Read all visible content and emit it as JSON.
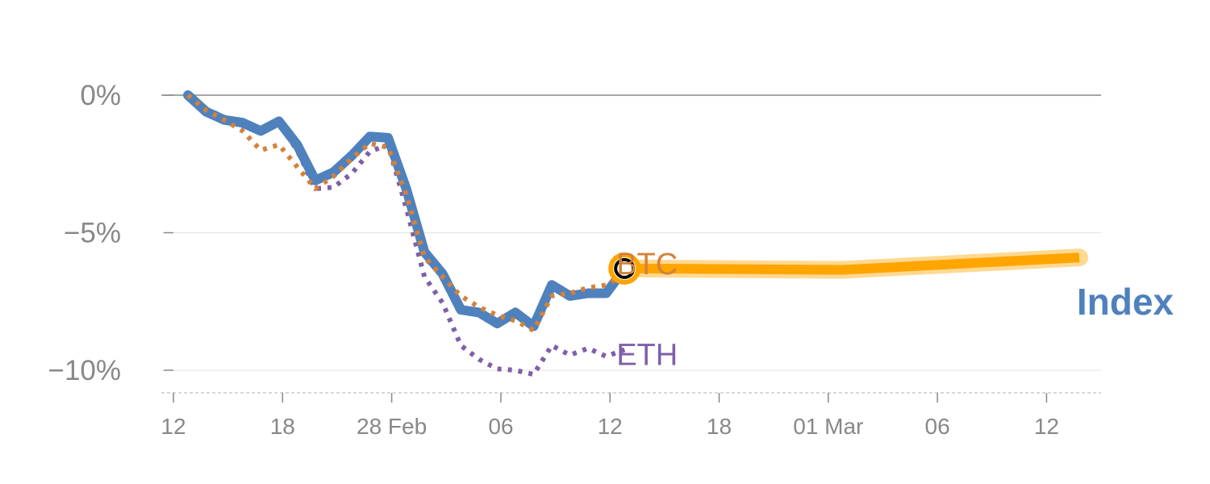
{
  "chart_data": {
    "type": "line",
    "x_ticks": [
      "12",
      "18",
      "28 Feb",
      "06",
      "12",
      "18",
      "01 Mar",
      "06",
      "12"
    ],
    "y_ticks": [
      {
        "value": 0,
        "label": "0%"
      },
      {
        "value": -5,
        "label": "−5%"
      },
      {
        "value": -10,
        "label": "−10%"
      }
    ],
    "ylim": [
      -10.8,
      0.8
    ],
    "xlim": [
      -0.5,
      50.5
    ],
    "grid": true,
    "series": [
      {
        "name": "Index",
        "color": "#4f81bd",
        "style": "solid",
        "x": [
          0,
          1,
          2,
          3,
          4,
          5,
          6,
          7,
          8,
          9,
          10,
          11,
          12,
          13,
          14,
          15,
          16,
          17,
          18,
          19,
          20,
          21,
          22,
          23,
          24
        ],
        "values": [
          0,
          -0.6,
          -0.9,
          -1.0,
          -1.3,
          -0.95,
          -1.8,
          -3.1,
          -2.8,
          -2.2,
          -1.5,
          -1.55,
          -3.4,
          -5.7,
          -6.5,
          -7.8,
          -7.9,
          -8.3,
          -7.9,
          -8.4,
          -6.9,
          -7.3,
          -7.2,
          -7.2,
          -6.3
        ]
      },
      {
        "name": "BTC",
        "color": "#d4823a",
        "style": "dotted",
        "x": [
          0,
          1,
          2,
          3,
          4,
          5,
          6,
          7,
          8,
          9,
          10,
          11,
          12,
          13,
          14,
          15,
          16,
          17,
          18,
          19,
          20,
          21,
          22,
          23,
          24
        ],
        "values": [
          0,
          -0.55,
          -0.9,
          -1.3,
          -2.0,
          -1.8,
          -2.6,
          -3.4,
          -2.95,
          -2.3,
          -1.75,
          -1.9,
          -3.6,
          -5.9,
          -6.6,
          -7.3,
          -7.7,
          -8.0,
          -8.2,
          -8.55,
          -7.3,
          -7.2,
          -7.0,
          -6.9,
          -6.5
        ]
      },
      {
        "name": "ETH",
        "color": "#7f5fa8",
        "style": "dotted",
        "x": [
          0,
          1,
          2,
          3,
          4,
          5,
          6,
          7,
          8,
          9,
          10,
          11,
          12,
          13,
          14,
          15,
          16,
          17,
          18,
          19,
          20,
          21,
          22,
          23,
          24
        ],
        "values": [
          0,
          -0.5,
          -0.8,
          -1.1,
          -1.35,
          -1.05,
          -2.0,
          -3.4,
          -3.35,
          -2.85,
          -2.05,
          -1.8,
          -4.1,
          -6.6,
          -7.55,
          -9.1,
          -9.6,
          -9.95,
          -10.0,
          -10.15,
          -9.1,
          -9.45,
          -9.2,
          -9.5,
          -9.25
        ]
      },
      {
        "name": "",
        "color": "#ffa500",
        "style": "forecast",
        "x": [
          24,
          36,
          49
        ],
        "values": [
          -6.3,
          -6.35,
          -5.9
        ]
      }
    ],
    "marker": {
      "x": 24,
      "y": -6.3
    },
    "labels": [
      {
        "text": "BTC",
        "color": "#d4823a",
        "x": 24,
        "y": -6.1
      },
      {
        "text": "ETH",
        "color": "#7f5fa8",
        "x": 24,
        "y": -9.4
      },
      {
        "text": "Index",
        "color": "#4f81bd"
      }
    ],
    "grid_color": "#e6e6e6",
    "zero_line_color": "#888888",
    "tick_color": "#888888"
  }
}
